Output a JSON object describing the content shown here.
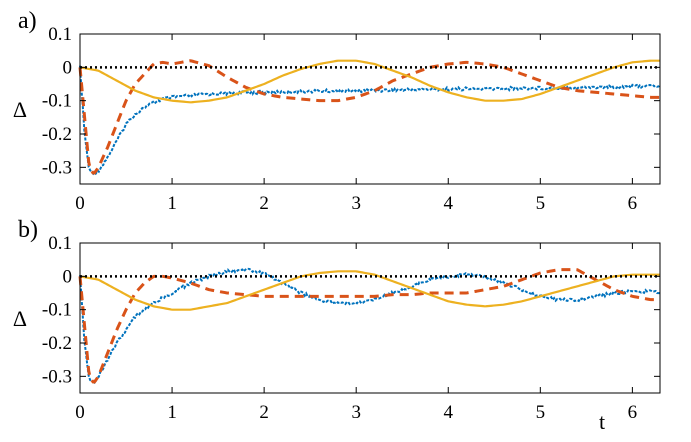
{
  "chart_data": [
    {
      "panel_label": "a)",
      "type": "line",
      "ylabel": "Δ",
      "xlabel": "",
      "xlim": [
        0,
        6.3
      ],
      "ylim": [
        -0.35,
        0.1
      ],
      "xticks": [
        0,
        1,
        2,
        3,
        4,
        5,
        6
      ],
      "yticks": [
        0.1,
        0,
        -0.1,
        -0.2,
        -0.3
      ],
      "grid": false,
      "series": [
        {
          "color": "#0072BD",
          "style": "dotted-noisy",
          "x": [
            0,
            0.05,
            0.1,
            0.15,
            0.2,
            0.3,
            0.4,
            0.5,
            0.6,
            0.7,
            0.8,
            0.9,
            1.0,
            1.2,
            1.4,
            1.6,
            1.8,
            2.0,
            2.5,
            3.0,
            3.5,
            4.0,
            4.5,
            5.0,
            5.5,
            6.0,
            6.3
          ],
          "y": [
            0,
            -0.2,
            -0.31,
            -0.32,
            -0.31,
            -0.27,
            -0.22,
            -0.17,
            -0.14,
            -0.12,
            -0.105,
            -0.095,
            -0.09,
            -0.085,
            -0.08,
            -0.078,
            -0.076,
            -0.075,
            -0.072,
            -0.07,
            -0.068,
            -0.065,
            -0.064,
            -0.062,
            -0.06,
            -0.057,
            -0.055
          ]
        },
        {
          "color": "#D95319",
          "style": "dashed",
          "x": [
            0,
            0.05,
            0.1,
            0.15,
            0.2,
            0.3,
            0.4,
            0.5,
            0.6,
            0.7,
            0.8,
            0.9,
            1.0,
            1.2,
            1.4,
            1.6,
            1.8,
            2.0,
            2.2,
            2.4,
            2.6,
            2.8,
            3.0,
            3.2,
            3.4,
            3.6,
            3.8,
            4.0,
            4.2,
            4.4,
            4.6,
            4.8,
            5.0,
            5.2,
            5.4,
            5.6,
            5.8,
            6.0,
            6.2,
            6.3
          ],
          "y": [
            0,
            -0.15,
            -0.3,
            -0.32,
            -0.3,
            -0.24,
            -0.17,
            -0.1,
            -0.05,
            -0.02,
            0.01,
            0.015,
            0.01,
            0.02,
            0.005,
            -0.03,
            -0.06,
            -0.08,
            -0.09,
            -0.095,
            -0.1,
            -0.1,
            -0.09,
            -0.07,
            -0.04,
            -0.02,
            0.0,
            0.01,
            0.015,
            0.01,
            0.0,
            -0.02,
            -0.04,
            -0.06,
            -0.07,
            -0.075,
            -0.08,
            -0.085,
            -0.09,
            -0.09
          ]
        },
        {
          "color": "#EDB120",
          "style": "solid",
          "x": [
            0,
            0.2,
            0.4,
            0.6,
            0.8,
            1.0,
            1.2,
            1.4,
            1.6,
            1.8,
            2.0,
            2.2,
            2.4,
            2.6,
            2.8,
            3.0,
            3.2,
            3.4,
            3.6,
            3.8,
            4.0,
            4.2,
            4.4,
            4.6,
            4.8,
            5.0,
            5.2,
            5.4,
            5.6,
            5.8,
            6.0,
            6.2,
            6.3
          ],
          "y": [
            0,
            -0.01,
            -0.04,
            -0.07,
            -0.09,
            -0.1,
            -0.105,
            -0.1,
            -0.09,
            -0.07,
            -0.05,
            -0.025,
            -0.005,
            0.01,
            0.02,
            0.02,
            0.01,
            -0.01,
            -0.03,
            -0.055,
            -0.075,
            -0.09,
            -0.1,
            -0.1,
            -0.095,
            -0.08,
            -0.06,
            -0.04,
            -0.02,
            0.0,
            0.015,
            0.02,
            0.02
          ]
        },
        {
          "color": "#000000",
          "style": "dotted",
          "x": [
            0,
            6.3
          ],
          "y": [
            0,
            0
          ]
        }
      ]
    },
    {
      "panel_label": "b)",
      "type": "line",
      "ylabel": "Δ",
      "xlabel": "t",
      "xlim": [
        0,
        6.3
      ],
      "ylim": [
        -0.35,
        0.1
      ],
      "xticks": [
        0,
        1,
        2,
        3,
        4,
        5,
        6
      ],
      "yticks": [
        0.1,
        0,
        -0.1,
        -0.2,
        -0.3
      ],
      "grid": false,
      "series": [
        {
          "color": "#0072BD",
          "style": "dotted-noisy",
          "x": [
            0,
            0.05,
            0.1,
            0.15,
            0.2,
            0.3,
            0.4,
            0.5,
            0.6,
            0.8,
            1.0,
            1.2,
            1.4,
            1.6,
            1.8,
            2.0,
            2.2,
            2.4,
            2.6,
            2.8,
            3.0,
            3.2,
            3.4,
            3.6,
            3.8,
            4.0,
            4.2,
            4.4,
            4.6,
            4.8,
            5.0,
            5.2,
            5.4,
            5.6,
            5.8,
            6.0,
            6.2,
            6.3
          ],
          "y": [
            0,
            -0.2,
            -0.31,
            -0.32,
            -0.3,
            -0.25,
            -0.2,
            -0.16,
            -0.12,
            -0.08,
            -0.05,
            -0.02,
            0.0,
            0.015,
            0.02,
            0.01,
            -0.02,
            -0.05,
            -0.07,
            -0.08,
            -0.08,
            -0.07,
            -0.05,
            -0.03,
            -0.01,
            0.0,
            0.005,
            0.0,
            -0.02,
            -0.04,
            -0.06,
            -0.07,
            -0.07,
            -0.06,
            -0.05,
            -0.045,
            -0.045,
            -0.05
          ]
        },
        {
          "color": "#D95319",
          "style": "dashed",
          "x": [
            0,
            0.05,
            0.1,
            0.15,
            0.2,
            0.3,
            0.4,
            0.5,
            0.6,
            0.7,
            0.8,
            0.9,
            1.0,
            1.2,
            1.4,
            1.6,
            1.8,
            2.0,
            2.2,
            2.4,
            2.6,
            2.8,
            3.0,
            3.2,
            3.4,
            3.6,
            3.8,
            4.0,
            4.2,
            4.4,
            4.6,
            4.8,
            5.0,
            5.2,
            5.4,
            5.6,
            5.8,
            6.0,
            6.2,
            6.3
          ],
          "y": [
            0,
            -0.15,
            -0.3,
            -0.32,
            -0.3,
            -0.23,
            -0.16,
            -0.1,
            -0.05,
            -0.02,
            0.0,
            0.0,
            -0.005,
            -0.02,
            -0.04,
            -0.05,
            -0.055,
            -0.06,
            -0.06,
            -0.06,
            -0.06,
            -0.06,
            -0.06,
            -0.06,
            -0.055,
            -0.055,
            -0.05,
            -0.05,
            -0.05,
            -0.04,
            -0.03,
            -0.01,
            0.01,
            0.02,
            0.02,
            -0.01,
            -0.04,
            -0.06,
            -0.07,
            -0.07
          ]
        },
        {
          "color": "#EDB120",
          "style": "solid",
          "x": [
            0,
            0.2,
            0.4,
            0.6,
            0.8,
            1.0,
            1.2,
            1.4,
            1.6,
            1.8,
            2.0,
            2.2,
            2.4,
            2.6,
            2.8,
            3.0,
            3.2,
            3.4,
            3.6,
            3.8,
            4.0,
            4.2,
            4.4,
            4.6,
            4.8,
            5.0,
            5.2,
            5.4,
            5.6,
            5.8,
            6.0,
            6.2,
            6.3
          ],
          "y": [
            0,
            -0.01,
            -0.04,
            -0.07,
            -0.09,
            -0.1,
            -0.1,
            -0.09,
            -0.08,
            -0.06,
            -0.04,
            -0.02,
            0.0,
            0.01,
            0.015,
            0.015,
            0.005,
            -0.015,
            -0.035,
            -0.055,
            -0.075,
            -0.085,
            -0.09,
            -0.085,
            -0.075,
            -0.06,
            -0.045,
            -0.03,
            -0.015,
            0.0,
            0.005,
            0.005,
            0.005
          ]
        },
        {
          "color": "#000000",
          "style": "dotted",
          "x": [
            0,
            6.3
          ],
          "y": [
            0,
            0
          ]
        }
      ]
    }
  ]
}
